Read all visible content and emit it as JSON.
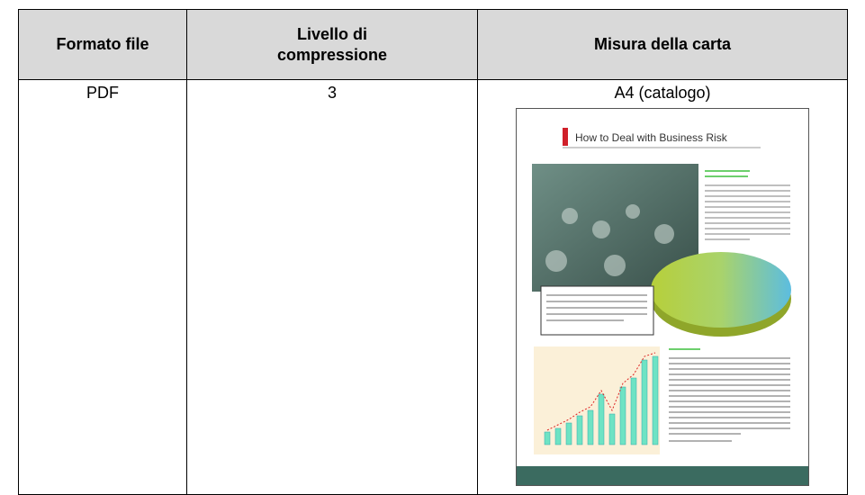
{
  "table": {
    "header": [
      "Formato file",
      "Livello di compressione",
      "Misura della carta"
    ],
    "rows": [
      [
        "PDF",
        "3",
        "A4 (catalogo)"
      ]
    ]
  },
  "thumbnail": {
    "title": "How to Deal with Business Risk"
  }
}
